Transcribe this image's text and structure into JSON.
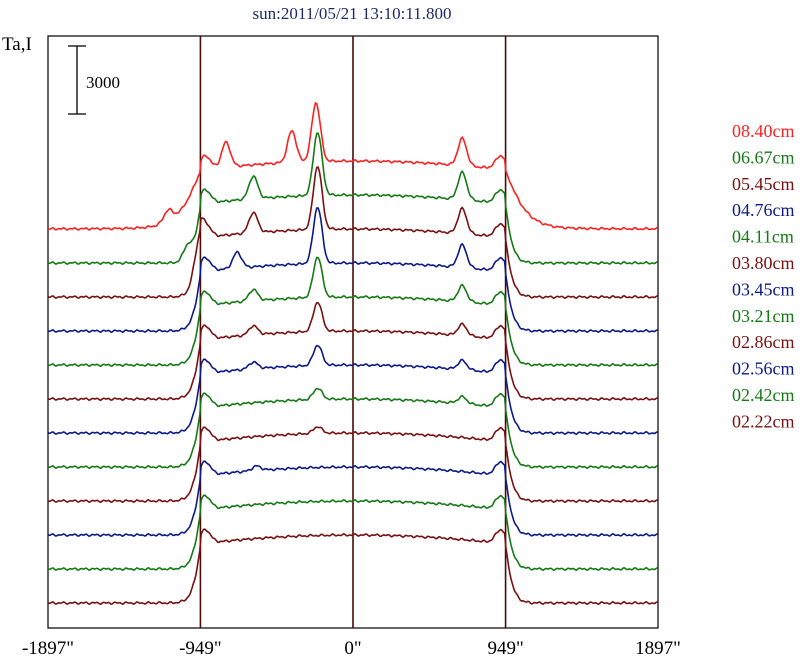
{
  "chart_data": {
    "type": "line",
    "title": "sun:2011/05/21 13:10:11.800",
    "ylabel": "Ta,I",
    "scale_bar_label": "3000",
    "xlim": [
      -1897,
      1897
    ],
    "x_ticks": [
      {
        "value": -1897,
        "label": "-1897\""
      },
      {
        "value": -949,
        "label": "-949\""
      },
      {
        "value": 0,
        "label": "0\""
      },
      {
        "value": 949,
        "label": "949\""
      },
      {
        "value": 1897,
        "label": "1897\""
      }
    ],
    "vertical_markers": [
      -949,
      0,
      949
    ],
    "series": [
      {
        "name": "08.40cm",
        "color": "#ff2020",
        "peaks": [
          [
            -1150,
            500
          ],
          [
            -790,
            1100
          ],
          [
            -380,
            1400
          ],
          [
            -230,
            2600
          ],
          [
            680,
            1200
          ]
        ],
        "bright": true
      },
      {
        "name": "06.67cm",
        "color": "#157a15",
        "peaks": [
          [
            -1030,
            600
          ],
          [
            -620,
            1000
          ],
          [
            -220,
            2800
          ],
          [
            680,
            1200
          ]
        ]
      },
      {
        "name": "05.45cm",
        "color": "#7a1010",
        "peaks": [
          [
            -970,
            700
          ],
          [
            -620,
            900
          ],
          [
            -220,
            2800
          ],
          [
            680,
            1100
          ]
        ]
      },
      {
        "name": "04.76cm",
        "color": "#0b1a8a",
        "peaks": [
          [
            -720,
            700
          ],
          [
            -220,
            2500
          ],
          [
            680,
            1000
          ]
        ]
      },
      {
        "name": "04.11cm",
        "color": "#157a15",
        "peaks": [
          [
            -620,
            500
          ],
          [
            -220,
            1800
          ],
          [
            680,
            700
          ]
        ]
      },
      {
        "name": "03.80cm",
        "color": "#7a1010",
        "peaks": [
          [
            -620,
            400
          ],
          [
            -220,
            1300
          ],
          [
            680,
            500
          ]
        ]
      },
      {
        "name": "03.45cm",
        "color": "#0b1a8a",
        "peaks": [
          [
            -620,
            300
          ],
          [
            -220,
            900
          ],
          [
            680,
            400
          ]
        ]
      },
      {
        "name": "03.21cm",
        "color": "#157a15",
        "peaks": [
          [
            -220,
            500
          ],
          [
            680,
            300
          ]
        ]
      },
      {
        "name": "02.86cm",
        "color": "#7a1010",
        "peaks": [
          [
            -220,
            300
          ]
        ]
      },
      {
        "name": "02.56cm",
        "color": "#0b1a8a",
        "peaks": [
          [
            -600,
            200
          ]
        ]
      },
      {
        "name": "02.42cm",
        "color": "#157a15",
        "peaks": []
      },
      {
        "name": "02.22cm",
        "color": "#7a1010",
        "peaks": []
      }
    ],
    "disk_level": 3000,
    "limb_half_width": 949,
    "grid": false,
    "legend_position": "right"
  }
}
